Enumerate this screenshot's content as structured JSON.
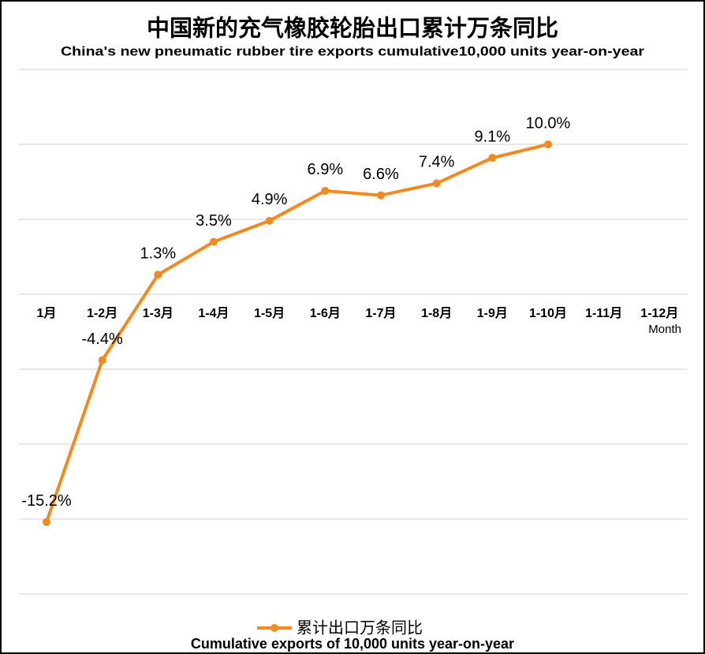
{
  "chart_data": {
    "type": "line",
    "title": "中国新的充气橡胶轮胎出口累计万条同比",
    "subtitle": "China's new pneumatic rubber tire exports cumulative10,000 units year-on-year",
    "x_label": "Month",
    "categories": [
      "1月",
      "1-2月",
      "1-3月",
      "1-4月",
      "1-5月",
      "1-6月",
      "1-7月",
      "1-8月",
      "1-9月",
      "1-10月",
      "1-11月",
      "1-12月"
    ],
    "series": [
      {
        "name": "累计出口万条同比",
        "color": "#f5891f",
        "values": [
          -15.2,
          -4.4,
          1.3,
          3.5,
          4.9,
          6.9,
          6.6,
          7.4,
          9.1,
          10.0,
          null,
          null
        ],
        "value_labels": [
          "-15.2%",
          "-4.4%",
          "1.3%",
          "3.5%",
          "4.9%",
          "6.9%",
          "6.6%",
          "7.4%",
          "9.1%",
          "10.0%",
          null,
          null
        ]
      }
    ],
    "legend_note": "Cumulative exports of 10,000 units year-on-year",
    "ylim": [
      -20,
      15
    ],
    "yticks": [
      -20,
      -15,
      -10,
      -5,
      0,
      5,
      10,
      15
    ],
    "grid": true
  }
}
